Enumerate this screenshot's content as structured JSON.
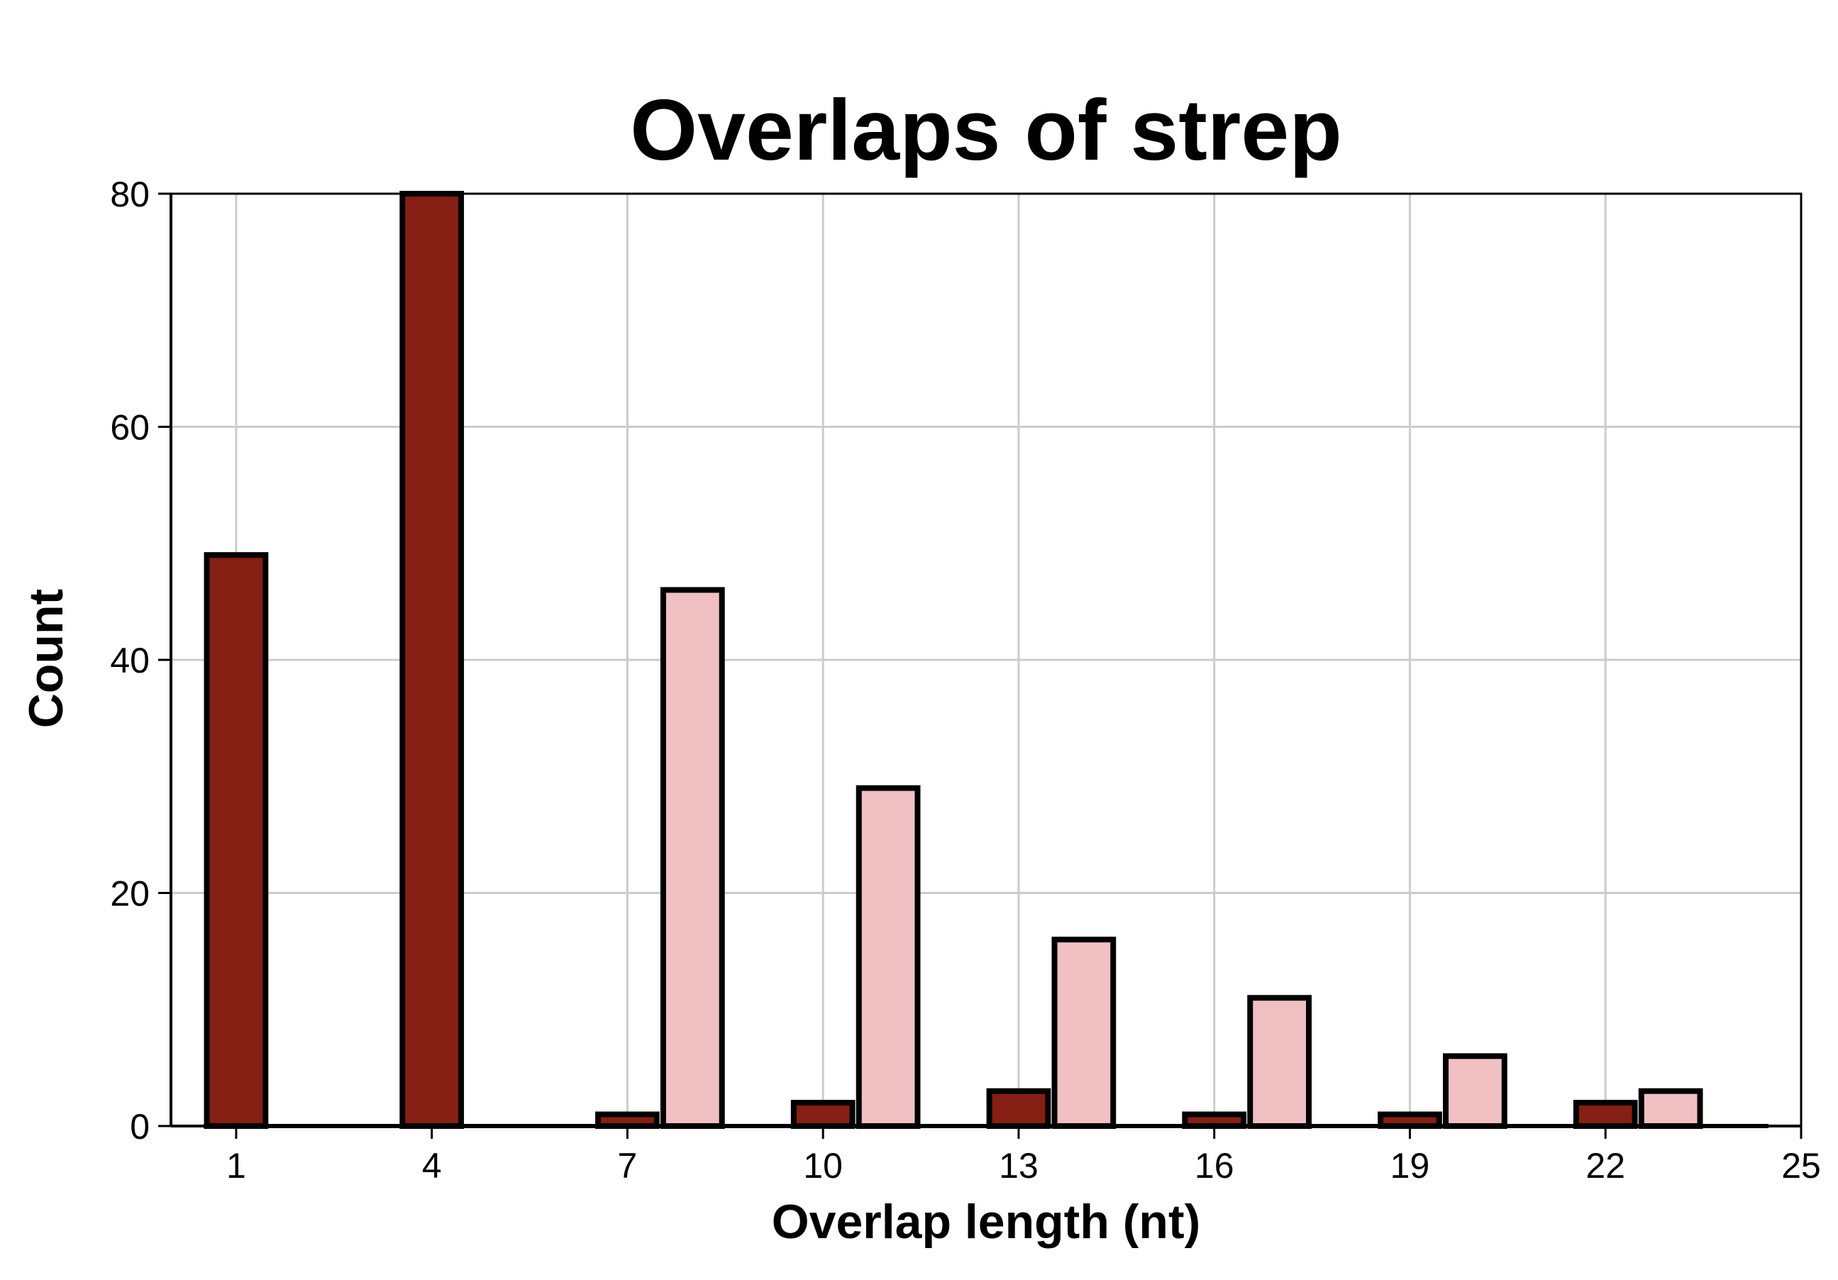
{
  "chart_data": {
    "type": "bar",
    "title": "Overlaps of strep",
    "xlabel": "Overlap length (nt)",
    "ylabel": "Count",
    "xlim": [
      0,
      25
    ],
    "ylim": [
      0,
      80
    ],
    "xticks": [
      1,
      4,
      7,
      10,
      13,
      16,
      19,
      22,
      25
    ],
    "yticks": [
      0,
      20,
      40,
      60,
      80
    ],
    "grid": true,
    "legend": "none",
    "colors": {
      "series_a": "#861F13",
      "series_b": "#F0C0C3"
    },
    "x": [
      1,
      2,
      3,
      4,
      5,
      6,
      7,
      8,
      9,
      10,
      11,
      12,
      13,
      14,
      15,
      16,
      17,
      18,
      19,
      20,
      21,
      22,
      23,
      24
    ],
    "series": [
      {
        "color": "#861F13",
        "values": [
          49,
          0,
          0,
          80,
          0,
          0,
          1,
          0,
          0,
          2,
          0,
          0,
          3,
          0,
          0,
          1,
          0,
          0,
          1,
          0,
          0,
          2,
          0,
          0
        ]
      },
      {
        "color": "#F0C0C3",
        "values": [
          0,
          0,
          0,
          0,
          0,
          0,
          0,
          46,
          0,
          0,
          29,
          0,
          0,
          16,
          0,
          0,
          11,
          0,
          0,
          6,
          0,
          0,
          3,
          0
        ]
      }
    ]
  }
}
